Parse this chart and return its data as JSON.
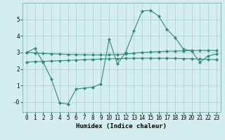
{
  "x": [
    0,
    1,
    2,
    3,
    4,
    5,
    6,
    7,
    8,
    9,
    10,
    11,
    12,
    13,
    14,
    15,
    16,
    17,
    18,
    19,
    20,
    21,
    22,
    23
  ],
  "line_main": [
    3.0,
    3.25,
    2.4,
    1.4,
    -0.05,
    -0.12,
    0.78,
    0.85,
    0.9,
    1.1,
    3.8,
    2.3,
    3.0,
    4.3,
    5.5,
    5.55,
    5.2,
    4.4,
    3.9,
    3.2,
    3.1,
    2.4,
    2.8,
    2.9
  ],
  "line_upper": [
    3.0,
    2.97,
    2.94,
    2.92,
    2.9,
    2.88,
    2.87,
    2.86,
    2.85,
    2.85,
    2.85,
    2.87,
    2.9,
    2.95,
    3.0,
    3.02,
    3.05,
    3.07,
    3.08,
    3.1,
    3.12,
    3.12,
    3.12,
    3.12
  ],
  "line_lower": [
    2.42,
    2.44,
    2.46,
    2.48,
    2.5,
    2.52,
    2.54,
    2.56,
    2.58,
    2.6,
    2.62,
    2.63,
    2.64,
    2.65,
    2.65,
    2.65,
    2.65,
    2.65,
    2.64,
    2.63,
    2.62,
    2.6,
    2.58,
    2.56
  ],
  "color": "#2e8b7a",
  "bg_color": "#d4edef",
  "grid_color": "#aaccce",
  "xlabel": "Humidex (Indice chaleur)",
  "ylim": [
    -0.6,
    6.0
  ],
  "xlim": [
    -0.5,
    23.5
  ],
  "yticks": [
    0,
    1,
    2,
    3,
    4,
    5
  ],
  "ytick_labels": [
    "-0",
    "1",
    "2",
    "3",
    "4",
    "5"
  ],
  "xticks": [
    0,
    1,
    2,
    3,
    4,
    5,
    6,
    7,
    8,
    9,
    10,
    11,
    12,
    13,
    14,
    15,
    16,
    17,
    18,
    19,
    20,
    21,
    22,
    23
  ],
  "marker": "D",
  "markersize": 2.0,
  "linewidth": 0.8,
  "xlabel_fontsize": 6.5,
  "tick_fontsize": 5.5
}
